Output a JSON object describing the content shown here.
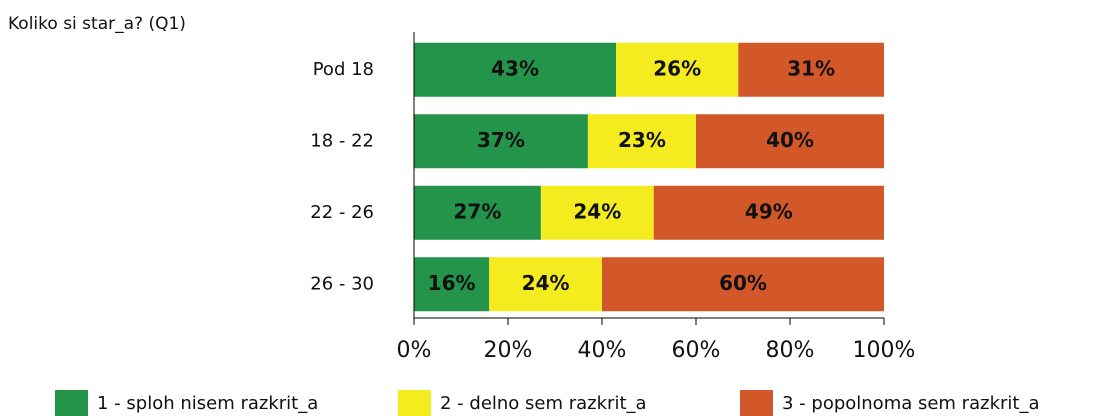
{
  "chart_data": {
    "type": "stacked-bar-horizontal",
    "title": "Koliko si star_a? (Q1)",
    "categories": [
      "Pod 18",
      "18 - 22",
      "22 - 26",
      "26 - 30"
    ],
    "series": [
      {
        "name": "1 - sploh nisem razkrit_a",
        "color": "#23944a",
        "values": [
          43,
          37,
          27,
          16
        ],
        "value_labels": [
          "43%",
          "37%",
          "27%",
          "16%"
        ]
      },
      {
        "name": "2 - delno sem razkrit_a",
        "color": "#f4ec1e",
        "values": [
          26,
          23,
          24,
          24
        ],
        "value_labels": [
          "26%",
          "23%",
          "24%",
          "24%"
        ]
      },
      {
        "name": "3 - popolnoma sem razkrit_a",
        "color": "#d2582a",
        "values": [
          31,
          40,
          49,
          60
        ],
        "value_labels": [
          "31%",
          "40%",
          "49%",
          "60%"
        ]
      }
    ],
    "xlim": [
      0,
      100
    ],
    "xticks": [
      {
        "value": 0,
        "label": "0%"
      },
      {
        "value": 20,
        "label": "20%"
      },
      {
        "value": 40,
        "label": "40%"
      },
      {
        "value": 60,
        "label": "60%"
      },
      {
        "value": 80,
        "label": "80%"
      },
      {
        "value": 100,
        "label": "100%"
      }
    ]
  }
}
